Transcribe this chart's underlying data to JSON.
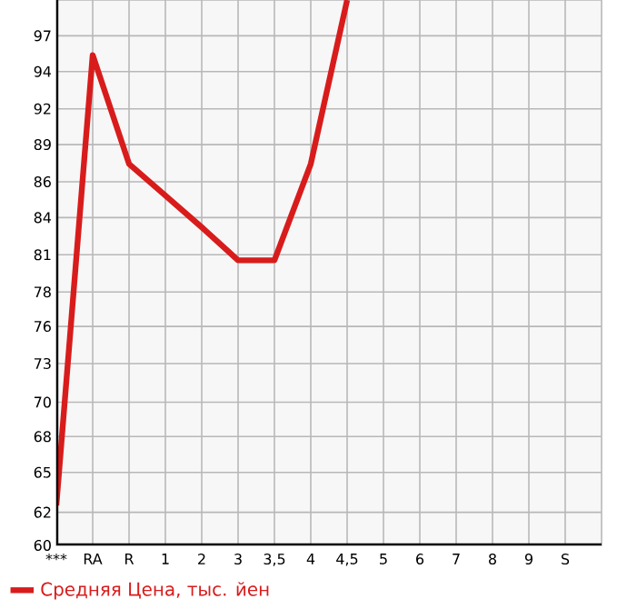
{
  "chart_data": {
    "type": "line",
    "categories": [
      "***",
      "RA",
      "R",
      "1",
      "2",
      "3",
      "3,5",
      "4",
      "4,5",
      "5",
      "6",
      "7",
      "8",
      "9",
      "S"
    ],
    "series": [
      {
        "name": "Средняя Цена, тыс. йен",
        "color": "#d81c1c",
        "values": [
          62.9,
          95.6,
          87.7,
          85.4,
          83.1,
          80.7,
          80.7,
          87.7,
          99.6,
          null,
          null,
          null,
          null,
          null,
          null
        ]
      }
    ],
    "ylim": [
      60,
      99.6
    ],
    "yticks": [
      60,
      {
        "value": 62.4,
        "label": "62"
      },
      {
        "value": 65.3,
        "label": "65"
      },
      {
        "value": 67.9,
        "label": "68"
      },
      {
        "value": 70.4,
        "label": "70"
      },
      {
        "value": 73.2,
        "label": "73"
      },
      {
        "value": 75.9,
        "label": "76"
      },
      {
        "value": 78.4,
        "label": "78"
      },
      {
        "value": 81.1,
        "label": "81"
      },
      {
        "value": 83.8,
        "label": "84"
      },
      {
        "value": 86.4,
        "label": "86"
      },
      {
        "value": 89.1,
        "label": "89"
      },
      {
        "value": 91.7,
        "label": "92"
      },
      {
        "value": 94.4,
        "label": "94"
      },
      {
        "value": 97,
        "label": "97"
      }
    ],
    "grid": true,
    "legend": "bottom left",
    "marker": "none",
    "line_style": "solid"
  }
}
